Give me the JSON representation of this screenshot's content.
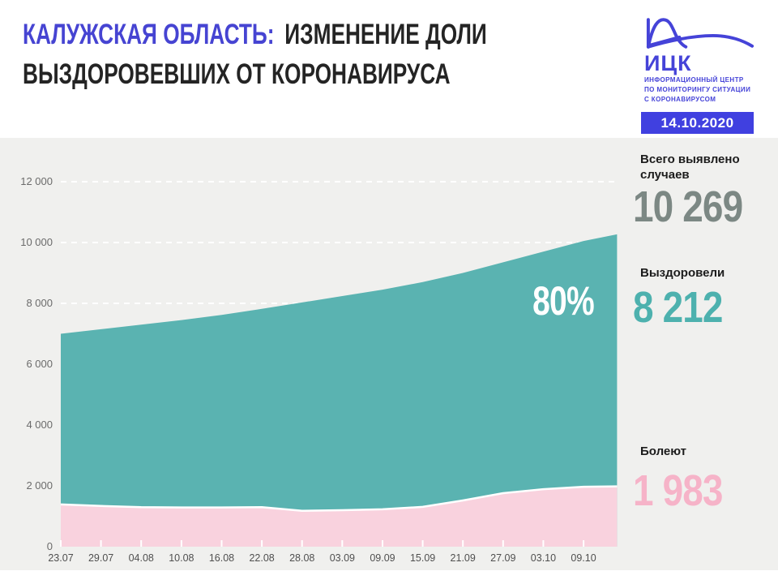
{
  "header": {
    "title_region": "КАЛУЖСКАЯ ОБЛАСТЬ:",
    "title_line1": "ИЗМЕНЕНИЕ ДОЛИ",
    "title_line2": "ВЫЗДОРОВЕВШИХ ОТ КОРОНАВИРУСА",
    "date": "14.10.2020"
  },
  "logo": {
    "abbr": "ИЦК",
    "line1": "ИНФОРМАЦИОННЫЙ ЦЕНТР",
    "line2": "ПО МОНИТОРИНГУ СИТУАЦИИ",
    "line3": "С КОРОНАВИРУСОМ",
    "icon": "flatten-the-curve-icon"
  },
  "stats": [
    {
      "label": "Всего выявлено случаев",
      "value": "10 269",
      "color": "#7c8884"
    },
    {
      "label": "Выздоровели",
      "value": "8 212",
      "color": "#4db1ae"
    },
    {
      "label": "Болеют",
      "value": "1 983",
      "color": "#f6b3c8"
    }
  ],
  "colors": {
    "brand_blue": "#4543d8",
    "badge_blue": "#4040e0",
    "recovered_area_teal": "#5ab3b1",
    "sick_area_pink": "#f9d2de",
    "section_background": "#f0f0ee",
    "grid": "#ffffff",
    "axis_text": "#6b6b6b"
  },
  "chart_data": {
    "type": "area",
    "stacked": true,
    "title": "Изменение доли выздоровевших от коронавируса — Калужская область",
    "grid": "dashed-white-horizontal",
    "legend_position": "none",
    "ylim": [
      0,
      12000
    ],
    "y_ticks": [
      {
        "label": "0",
        "value": 0
      },
      {
        "label": "2 000",
        "value": 2000
      },
      {
        "label": "4 000",
        "value": 4000
      },
      {
        "label": "6 000",
        "value": 6000
      },
      {
        "label": "8 000",
        "value": 8000
      },
      {
        "label": "10 000",
        "value": 10000
      },
      {
        "label": "12 000",
        "value": 12000
      }
    ],
    "x_ticks": [
      {
        "label": "23.07",
        "day": 0
      },
      {
        "label": "29.07",
        "day": 6
      },
      {
        "label": "04.08",
        "day": 12
      },
      {
        "label": "10.08",
        "day": 18
      },
      {
        "label": "16.08",
        "day": 24
      },
      {
        "label": "22.08",
        "day": 30
      },
      {
        "label": "28.08",
        "day": 36
      },
      {
        "label": "03.09",
        "day": 42
      },
      {
        "label": "09.09",
        "day": 48
      },
      {
        "label": "15.09",
        "day": 54
      },
      {
        "label": "21.09",
        "day": 60
      },
      {
        "label": "27.09",
        "day": 66
      },
      {
        "label": "03.10",
        "day": 72
      },
      {
        "label": "09.10",
        "day": 78
      }
    ],
    "points": {
      "dates": [
        "23.07",
        "29.07",
        "04.08",
        "10.08",
        "16.08",
        "22.08",
        "28.08",
        "03.09",
        "09.09",
        "15.09",
        "21.09",
        "27.09",
        "03.10",
        "09.10",
        "14.10"
      ],
      "days": [
        0,
        6,
        12,
        18,
        24,
        30,
        36,
        42,
        48,
        54,
        60,
        66,
        72,
        78,
        83
      ],
      "total_cases": [
        7000,
        7150,
        7300,
        7450,
        7620,
        7820,
        8030,
        8240,
        8450,
        8700,
        9000,
        9350,
        9700,
        10050,
        10269
      ],
      "active_sick": [
        1390,
        1340,
        1300,
        1290,
        1290,
        1300,
        1180,
        1200,
        1230,
        1310,
        1520,
        1760,
        1890,
        1970,
        1983
      ]
    },
    "series": [
      {
        "name": "Выздоровели (верхняя граница — всего случаев)",
        "color": "#5ab3b1"
      },
      {
        "name": "Болеют",
        "color": "#f9d2de"
      }
    ],
    "annotation": {
      "text": "80%",
      "meaning": "доля выздоровевших"
    }
  }
}
